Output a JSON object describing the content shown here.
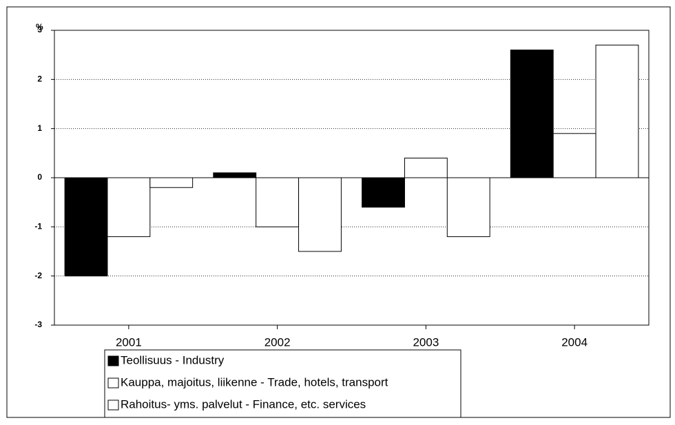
{
  "chart_data": {
    "type": "bar",
    "ylabel": "%",
    "categories": [
      "2001",
      "2002",
      "2003",
      "2004"
    ],
    "series": [
      {
        "name": "Teollisuus - Industry",
        "color": "#000000",
        "values": [
          -2.0,
          0.1,
          -0.6,
          2.6
        ]
      },
      {
        "name": "Kauppa, majoitus, liikenne - Trade, hotels, transport",
        "color": "#ffffff",
        "values": [
          -1.2,
          -1.0,
          0.4,
          0.9
        ]
      },
      {
        "name": "Rahoitus- yms. palvelut - Finance, etc. services",
        "color": "#ffffff",
        "values": [
          -0.2,
          -1.5,
          -1.2,
          2.7
        ]
      }
    ],
    "ylim": [
      -3,
      3
    ],
    "yticks": [
      -3,
      -2,
      -1,
      0,
      1,
      2,
      3
    ],
    "grid": true
  }
}
